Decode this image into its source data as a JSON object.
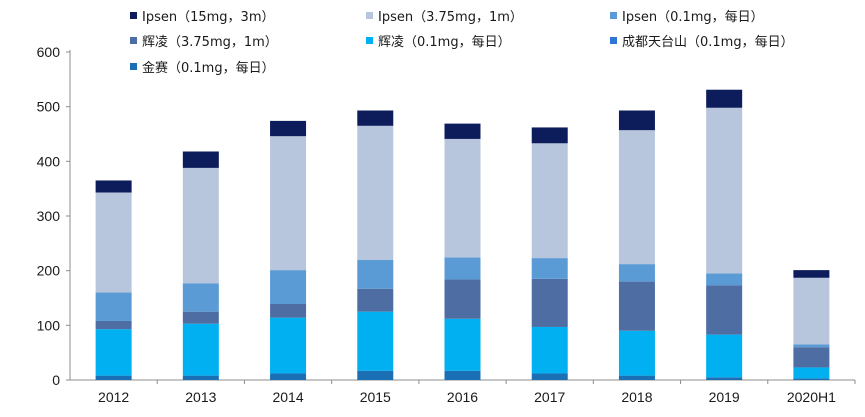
{
  "chart_data": {
    "type": "bar",
    "stacked": true,
    "title": "",
    "xlabel": "",
    "ylabel": "",
    "ylim": [
      0,
      600
    ],
    "yticks": [
      0,
      100,
      200,
      300,
      400,
      500,
      600
    ],
    "grid": false,
    "legend_position": "top",
    "categories": [
      "2012",
      "2013",
      "2014",
      "2015",
      "2016",
      "2017",
      "2018",
      "2019",
      "2020H1"
    ],
    "series": [
      {
        "name": "金赛（0.1mg，每日）",
        "color": "#1b6fb5",
        "values": [
          8,
          8,
          12,
          17,
          17,
          12,
          8,
          5,
          3
        ]
      },
      {
        "name": "成都天台山（0.1mg，每日）",
        "color": "#2e75d6",
        "values": [
          0,
          0,
          0,
          0,
          0,
          0,
          0,
          0,
          0
        ]
      },
      {
        "name": "辉凌（0.1mg，每日）",
        "color": "#00b0f0",
        "values": [
          85,
          95,
          102,
          108,
          95,
          85,
          82,
          78,
          20
        ]
      },
      {
        "name": "辉凌（3.75mg，1m）",
        "color": "#4e6ea3",
        "values": [
          15,
          22,
          25,
          42,
          72,
          88,
          90,
          90,
          37
        ]
      },
      {
        "name": "Ipsen（0.1mg，每日）",
        "color": "#5b9bd5",
        "values": [
          52,
          52,
          62,
          53,
          40,
          38,
          32,
          22,
          5
        ]
      },
      {
        "name": "Ipsen（3.75mg，1m）",
        "color": "#b8c6dd",
        "values": [
          183,
          211,
          245,
          245,
          217,
          210,
          245,
          303,
          122
        ]
      },
      {
        "name": "Ipsen（15mg，3m）",
        "color": "#0d1d5c",
        "values": [
          22,
          30,
          28,
          28,
          28,
          29,
          36,
          33,
          14
        ]
      }
    ]
  },
  "legend": {
    "row1": [
      "Ipsen（15mg，3m）",
      "Ipsen（3.75mg，1m）",
      "Ipsen（0.1mg，每日）"
    ],
    "row2": [
      "辉凌（3.75mg，1m）",
      "辉凌（0.1mg，每日）",
      "成都天台山（0.1mg，每日）"
    ],
    "row3": [
      "金赛（0.1mg，每日）"
    ]
  }
}
